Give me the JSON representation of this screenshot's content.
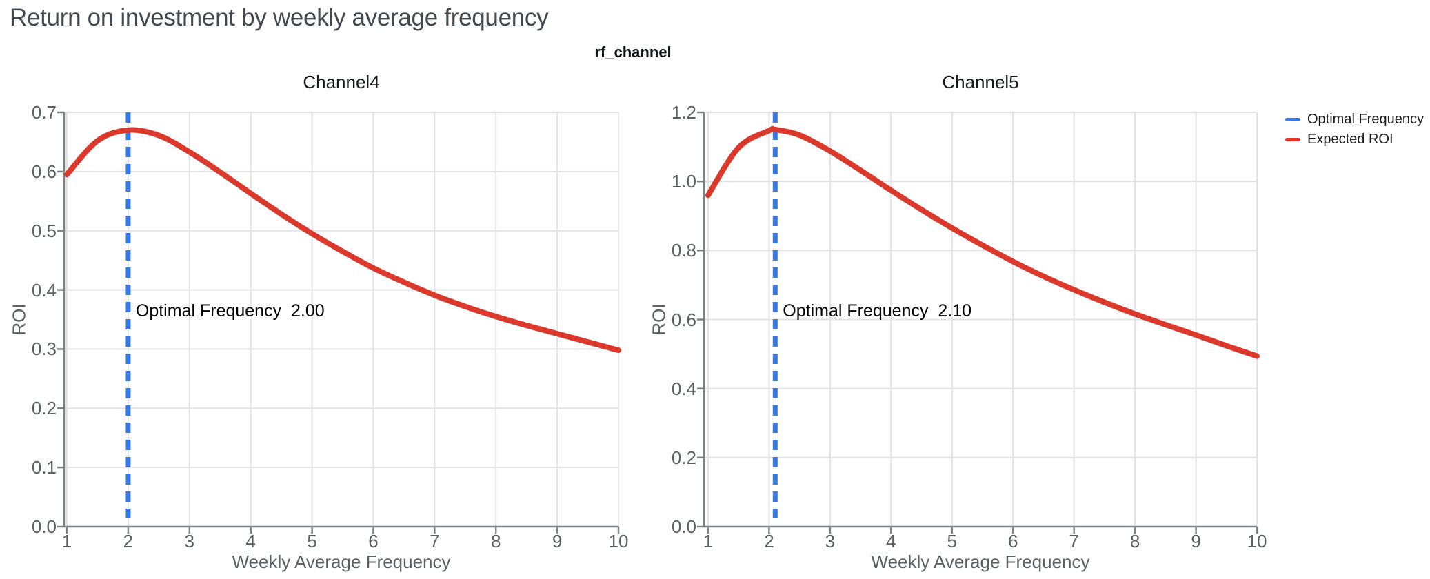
{
  "header": {
    "title": "Return on investment by weekly average frequency"
  },
  "chart": {
    "facet_title": "rf_channel",
    "legend": [
      {
        "label": "Optimal Frequency",
        "color": "#367ae8"
      },
      {
        "label": "Expected ROI",
        "color": "#db392b"
      }
    ]
  },
  "colors": {
    "expected_roi_line": "#db392b",
    "optimal_frequency_line": "#367ae8",
    "gridline": "#e3e3e3",
    "axis_line": "#7d8287",
    "axis_text": "#5b6065"
  },
  "chart_data": [
    {
      "type": "line",
      "title": "Channel4",
      "xlabel": "Weekly Average Frequency",
      "ylabel": "ROI",
      "xlim": [
        1,
        10
      ],
      "ylim": [
        0.0,
        0.7
      ],
      "xticks": [
        "1",
        "2",
        "3",
        "4",
        "5",
        "6",
        "7",
        "8",
        "9",
        "10"
      ],
      "yticks": [
        "0.0",
        "0.1",
        "0.2",
        "0.3",
        "0.4",
        "0.5",
        "0.6",
        "0.7"
      ],
      "grid": true,
      "vline": {
        "label": "Optimal Frequency",
        "x": 2.0
      },
      "annotation": "Optimal Frequency  2.00",
      "series": [
        {
          "name": "Expected ROI",
          "x": [
            1,
            1.5,
            2,
            2.5,
            3,
            3.5,
            4,
            4.5,
            5,
            5.5,
            6,
            6.5,
            7,
            7.5,
            8,
            8.5,
            9,
            9.5,
            10
          ],
          "y": [
            0.595,
            0.652,
            0.67,
            0.661,
            0.633,
            0.599,
            0.563,
            0.528,
            0.495,
            0.465,
            0.437,
            0.413,
            0.391,
            0.372,
            0.355,
            0.34,
            0.326,
            0.312,
            0.298
          ]
        }
      ]
    },
    {
      "type": "line",
      "title": "Channel5",
      "xlabel": "Weekly Average Frequency",
      "ylabel": "ROI",
      "xlim": [
        1,
        10
      ],
      "ylim": [
        0.0,
        1.2
      ],
      "xticks": [
        "1",
        "2",
        "3",
        "4",
        "5",
        "6",
        "7",
        "8",
        "9",
        "10"
      ],
      "yticks": [
        "0.0",
        "0.2",
        "0.4",
        "0.6",
        "0.8",
        "1.0",
        "1.2"
      ],
      "grid": true,
      "vline": {
        "label": "Optimal Frequency",
        "x": 2.1
      },
      "annotation": "Optimal Frequency  2.10",
      "series": [
        {
          "name": "Expected ROI",
          "x": [
            1,
            1.5,
            2,
            2.1,
            2.5,
            3,
            3.5,
            4,
            4.5,
            5,
            5.5,
            6,
            6.5,
            7,
            7.5,
            8,
            8.5,
            9,
            9.5,
            10
          ],
          "y": [
            0.96,
            1.098,
            1.147,
            1.15,
            1.134,
            1.088,
            1.032,
            0.974,
            0.918,
            0.865,
            0.815,
            0.768,
            0.725,
            0.686,
            0.65,
            0.616,
            0.585,
            0.555,
            0.524,
            0.494
          ]
        }
      ]
    }
  ]
}
